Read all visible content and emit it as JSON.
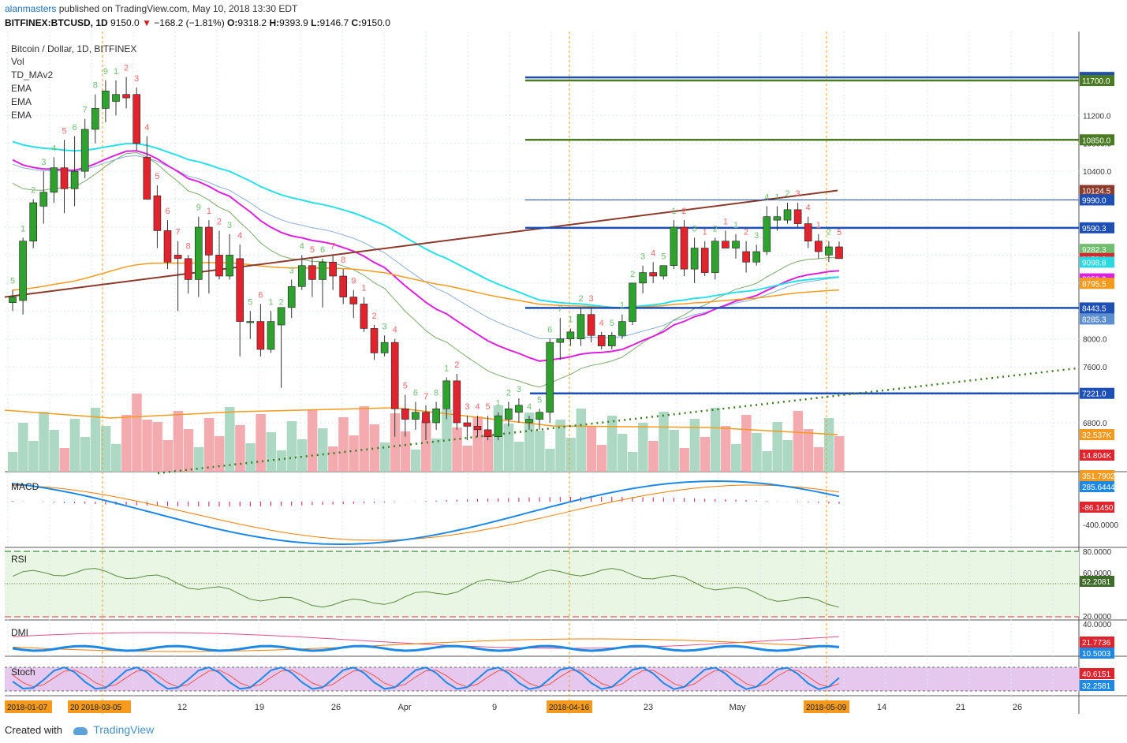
{
  "header": {
    "user": "alanmasters",
    "published_text": "published on TradingView.com, May 10, 2018 13:30 EDT",
    "symbol": "BITFINEX:BTCUSD, 1D",
    "last": "9150.0",
    "change": "−168.2 (−1.81%)",
    "o_label": "O:",
    "o": "9318.2",
    "h_label": "H:",
    "h": "9393.9",
    "l_label": "L:",
    "l": "9146.7",
    "c_label": "C:",
    "c": "9150.0"
  },
  "legend": {
    "title": "Bitcoin / Dollar, 1D, BITFINEX",
    "items": [
      "Vol",
      "TD_MAv2",
      "EMA",
      "EMA",
      "EMA"
    ]
  },
  "panes": {
    "macd": "MACD",
    "rsi": "RSI",
    "dmi": "DMI",
    "stoch": "Stoch"
  },
  "footer": {
    "created_with": "Created with",
    "brand": "TradingView"
  },
  "colors": {
    "up": "#2fa12f",
    "down": "#e0232d",
    "vol_up": "#a9d6c0",
    "vol_down": "#f2a7ab",
    "ema_cyan": "#29e0e8",
    "ema_magenta": "#dd22dd",
    "ema_orange": "#f59a1c",
    "ma_brown": "#8b3a2b",
    "ma_green": "#7aaa6a",
    "ma_blue": "#8aaed4",
    "hline_blue": "#1d4fb5",
    "hline_green": "#4a7a22",
    "macd": "#1e88e5",
    "signal": "#f57c00",
    "rsi": "#5a8a3c",
    "dmi_plus": "#e84d8a",
    "stoch_bg": "#e6c8ef",
    "stoch_k": "#1e88e5",
    "stoch_d": "#ef5350"
  },
  "chart_data": {
    "type": "candlestick",
    "title": "Bitcoin / Dollar, 1D, BITFINEX",
    "price_axis_ticks": [
      "11200.0",
      "10800.0",
      "10400.0",
      "8000.0",
      "7600.0",
      "6800.0"
    ],
    "x_axis_ticks": [
      "12",
      "19",
      "26",
      "Apr",
      "9",
      "23",
      "May",
      "14",
      "21",
      "26"
    ],
    "date_labels_highlighted": [
      "2018-01-07",
      "20 2018-03-05",
      "2018-04-16",
      "2018-05-09"
    ],
    "price_labels": [
      {
        "value": "11743.5",
        "color": "#1d4fb5"
      },
      {
        "value": "11700.0",
        "color": "#4a7a22"
      },
      {
        "value": "10850.0",
        "color": "#4a7a22"
      },
      {
        "value": "10124.5",
        "color": "#8b3a2b"
      },
      {
        "value": "9990.0",
        "color": "#1d4fb5"
      },
      {
        "value": "9590.3",
        "color": "#1d4fb5"
      },
      {
        "value": "9282.3",
        "color": "#6fbf6f"
      },
      {
        "value": "9150.0",
        "color": "#e0232d"
      },
      {
        "value": "9098.8",
        "color": "#29d8e0"
      },
      {
        "value": "8859.9",
        "color": "#dd22dd"
      },
      {
        "value": "8795.5",
        "color": "#f59a1c"
      },
      {
        "value": "8443.5",
        "color": "#1d4fb5"
      },
      {
        "value": "8285.3",
        "color": "#5b8fd0"
      },
      {
        "value": "7221.0",
        "color": "#1d4fb5"
      },
      {
        "value": "32.537K",
        "color": "#f59a1c"
      },
      {
        "value": "14.804K",
        "color": "#e0232d"
      }
    ],
    "horizontal_levels": [
      11743.5,
      11700.0,
      10850.0,
      9990.0,
      9590.3,
      8443.5,
      7221.0
    ],
    "candles": [
      {
        "o": 8520,
        "h": 8700,
        "l": 8400,
        "c": 8600
      },
      {
        "o": 8550,
        "h": 9450,
        "l": 8350,
        "c": 9400
      },
      {
        "o": 9400,
        "h": 10000,
        "l": 9300,
        "c": 9950
      },
      {
        "o": 9900,
        "h": 10400,
        "l": 9650,
        "c": 10100
      },
      {
        "o": 10100,
        "h": 10600,
        "l": 9950,
        "c": 10450
      },
      {
        "o": 10450,
        "h": 10850,
        "l": 9800,
        "c": 10150
      },
      {
        "o": 10150,
        "h": 10900,
        "l": 9900,
        "c": 10400
      },
      {
        "o": 10400,
        "h": 11150,
        "l": 10300,
        "c": 11000
      },
      {
        "o": 11000,
        "h": 11500,
        "l": 10800,
        "c": 11300
      },
      {
        "o": 11300,
        "h": 11700,
        "l": 11100,
        "c": 11550
      },
      {
        "o": 11400,
        "h": 11700,
        "l": 11200,
        "c": 11500
      },
      {
        "o": 11500,
        "h": 11750,
        "l": 11300,
        "c": 11450
      },
      {
        "o": 11500,
        "h": 11600,
        "l": 10700,
        "c": 10800
      },
      {
        "o": 10600,
        "h": 10900,
        "l": 10000,
        "c": 10000
      },
      {
        "o": 10050,
        "h": 10200,
        "l": 9300,
        "c": 9550
      },
      {
        "o": 9550,
        "h": 9700,
        "l": 9000,
        "c": 9100
      },
      {
        "o": 9200,
        "h": 9400,
        "l": 8400,
        "c": 9150
      },
      {
        "o": 9150,
        "h": 9200,
        "l": 8650,
        "c": 8850
      },
      {
        "o": 8850,
        "h": 9750,
        "l": 8600,
        "c": 9600
      },
      {
        "o": 9600,
        "h": 9700,
        "l": 8650,
        "c": 9200
      },
      {
        "o": 9200,
        "h": 9550,
        "l": 8850,
        "c": 8900
      },
      {
        "o": 8900,
        "h": 9500,
        "l": 8850,
        "c": 9200
      },
      {
        "o": 9150,
        "h": 9350,
        "l": 7750,
        "c": 8250
      },
      {
        "o": 8250,
        "h": 8400,
        "l": 8000,
        "c": 8250
      },
      {
        "o": 8250,
        "h": 8500,
        "l": 7750,
        "c": 7850
      },
      {
        "o": 7850,
        "h": 8400,
        "l": 7800,
        "c": 8250
      },
      {
        "o": 8200,
        "h": 8400,
        "l": 7300,
        "c": 8450
      },
      {
        "o": 8450,
        "h": 8850,
        "l": 8300,
        "c": 8750
      },
      {
        "o": 8750,
        "h": 9200,
        "l": 8700,
        "c": 9050
      },
      {
        "o": 9050,
        "h": 9150,
        "l": 8600,
        "c": 8850
      },
      {
        "o": 8850,
        "h": 9150,
        "l": 8450,
        "c": 9100
      },
      {
        "o": 9100,
        "h": 9200,
        "l": 8700,
        "c": 8900
      },
      {
        "o": 8900,
        "h": 9000,
        "l": 8500,
        "c": 8600
      },
      {
        "o": 8600,
        "h": 8700,
        "l": 8300,
        "c": 8500
      },
      {
        "o": 8500,
        "h": 8600,
        "l": 8100,
        "c": 8150
      },
      {
        "o": 8150,
        "h": 8200,
        "l": 7700,
        "c": 7800
      },
      {
        "o": 7800,
        "h": 8050,
        "l": 7750,
        "c": 7950
      },
      {
        "o": 7950,
        "h": 8000,
        "l": 6600,
        "c": 7000
      },
      {
        "o": 7000,
        "h": 7200,
        "l": 6600,
        "c": 6850
      },
      {
        "o": 6850,
        "h": 7100,
        "l": 6700,
        "c": 6950
      },
      {
        "o": 6950,
        "h": 7050,
        "l": 6550,
        "c": 6800
      },
      {
        "o": 6800,
        "h": 7100,
        "l": 6700,
        "c": 7000
      },
      {
        "o": 7000,
        "h": 7450,
        "l": 6850,
        "c": 7400
      },
      {
        "o": 7400,
        "h": 7500,
        "l": 6700,
        "c": 6800
      },
      {
        "o": 6800,
        "h": 6900,
        "l": 6550,
        "c": 6750
      },
      {
        "o": 6750,
        "h": 6900,
        "l": 6600,
        "c": 6700
      },
      {
        "o": 6700,
        "h": 6900,
        "l": 6550,
        "c": 6600
      },
      {
        "o": 6600,
        "h": 6950,
        "l": 6550,
        "c": 6900
      },
      {
        "o": 6850,
        "h": 7100,
        "l": 6750,
        "c": 7000
      },
      {
        "o": 6950,
        "h": 7150,
        "l": 6800,
        "c": 7050
      },
      {
        "o": 6800,
        "h": 6900,
        "l": 6700,
        "c": 6850
      },
      {
        "o": 6850,
        "h": 7000,
        "l": 6700,
        "c": 6950
      },
      {
        "o": 6950,
        "h": 8000,
        "l": 6800,
        "c": 7950
      },
      {
        "o": 7950,
        "h": 8300,
        "l": 7700,
        "c": 8000
      },
      {
        "o": 8000,
        "h": 8150,
        "l": 7900,
        "c": 8100
      },
      {
        "o": 8000,
        "h": 8450,
        "l": 7900,
        "c": 8350
      },
      {
        "o": 8350,
        "h": 8450,
        "l": 7950,
        "c": 8050
      },
      {
        "o": 8050,
        "h": 8100,
        "l": 7850,
        "c": 7900
      },
      {
        "o": 7900,
        "h": 8100,
        "l": 7850,
        "c": 8050
      },
      {
        "o": 8050,
        "h": 8350,
        "l": 8000,
        "c": 8250
      },
      {
        "o": 8250,
        "h": 8800,
        "l": 8200,
        "c": 8800
      },
      {
        "o": 8800,
        "h": 9050,
        "l": 8650,
        "c": 8950
      },
      {
        "o": 8950,
        "h": 9100,
        "l": 8800,
        "c": 8900
      },
      {
        "o": 8900,
        "h": 9050,
        "l": 8850,
        "c": 9050
      },
      {
        "o": 9050,
        "h": 9700,
        "l": 9000,
        "c": 9600
      },
      {
        "o": 9600,
        "h": 9700,
        "l": 8900,
        "c": 9000
      },
      {
        "o": 9000,
        "h": 9450,
        "l": 8800,
        "c": 9300
      },
      {
        "o": 9300,
        "h": 9400,
        "l": 8900,
        "c": 8950
      },
      {
        "o": 8950,
        "h": 9450,
        "l": 8850,
        "c": 9400
      },
      {
        "o": 9400,
        "h": 9550,
        "l": 9300,
        "c": 9300
      },
      {
        "o": 9300,
        "h": 9500,
        "l": 9150,
        "c": 9400
      },
      {
        "o": 9250,
        "h": 9400,
        "l": 8950,
        "c": 9100
      },
      {
        "o": 9100,
        "h": 9350,
        "l": 9050,
        "c": 9250
      },
      {
        "o": 9250,
        "h": 9900,
        "l": 9200,
        "c": 9750
      },
      {
        "o": 9700,
        "h": 9900,
        "l": 9550,
        "c": 9750
      },
      {
        "o": 9700,
        "h": 9950,
        "l": 9650,
        "c": 9850
      },
      {
        "o": 9850,
        "h": 9950,
        "l": 9600,
        "c": 9650
      },
      {
        "o": 9650,
        "h": 9750,
        "l": 9300,
        "c": 9400
      },
      {
        "o": 9400,
        "h": 9500,
        "l": 9150,
        "c": 9250
      },
      {
        "o": 9200,
        "h": 9400,
        "l": 9100,
        "c": 9318
      },
      {
        "o": 9318,
        "h": 9394,
        "l": 9147,
        "c": 9150
      }
    ]
  }
}
